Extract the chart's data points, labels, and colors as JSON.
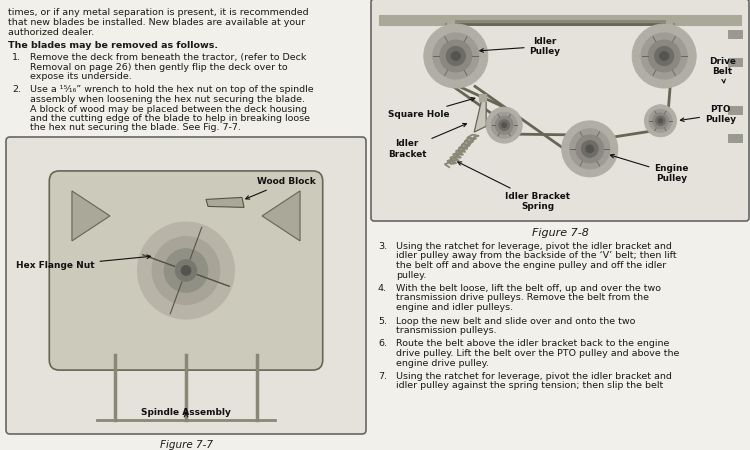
{
  "bg_color": "#f2f0eb",
  "text_color": "#1a1a1a",
  "top_text_lines": [
    "times, or if any metal separation is present, it is recommended",
    "that new blades be installed. New blades are available at your",
    "authorized dealer."
  ],
  "blades_header": "The blades may be removed as follows.",
  "numbered_items_left": [
    {
      "num": "1.",
      "lines": [
        "Remove the deck from beneath the tractor, (refer to Deck",
        "Removal on page 26) then gently flip the deck over to",
        "expose its underside."
      ]
    },
    {
      "num": "2.",
      "lines": [
        "Use a ¹⁵⁄₁₆” wrench to hold the hex nut on top of the spindle",
        "assembly when loosening the hex nut securing the blade.",
        "A block of wood may be placed between the deck housing",
        "and the cutting edge of the blade to help in breaking loose",
        "the hex nut securing the blade. See Fig. 7-7."
      ]
    }
  ],
  "fig77_caption": "Figure 7-7",
  "fig78_caption": "Figure 7-8",
  "numbered_items_right": [
    {
      "num": "3.",
      "lines": [
        "Using the ratchet for leverage, pivot the idler bracket and",
        "idler pulley away from the backside of the ‘V’ belt; then lift",
        "the belt off and above the engine pulley and off the idler",
        "pulley."
      ]
    },
    {
      "num": "4.",
      "lines": [
        "With the belt loose, lift the belt off, up and over the two",
        "transmission drive pulleys. Remove the belt from the",
        "engine and idler pulleys."
      ]
    },
    {
      "num": "5.",
      "lines": [
        "Loop the new belt and slide over and onto the two",
        "transmission pulleys."
      ]
    },
    {
      "num": "6.",
      "lines": [
        "Route the belt above the idler bracket back to the engine",
        "drive pulley. Lift the belt over the PTO pulley and above the",
        "engine drive pulley."
      ]
    },
    {
      "num": "7.",
      "lines": [
        "Using the ratchet for leverage, pivot the idler bracket and",
        "idler pulley against the spring tension; then slip the belt"
      ]
    }
  ]
}
